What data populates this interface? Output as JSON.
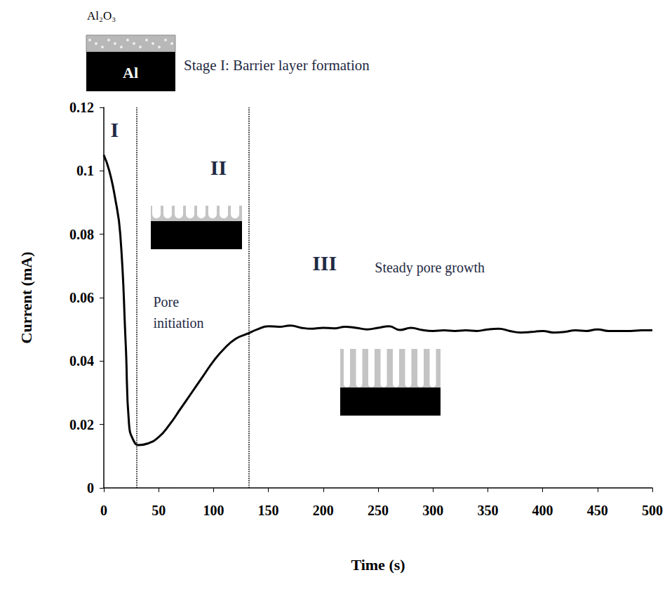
{
  "chart_data": {
    "type": "line",
    "header": "Stage I: Barrier layer formation",
    "schematic_labels": [
      "Al₂O₃",
      "Al"
    ],
    "xlabel": "Time (s)",
    "ylabel": "Current (mA)",
    "x": [
      0,
      5,
      10,
      15,
      20,
      23,
      27,
      32,
      40,
      50,
      60,
      70,
      80,
      90,
      100,
      110,
      120,
      130,
      140,
      150,
      160,
      170,
      180,
      190,
      200,
      210,
      220,
      230,
      240,
      250,
      260,
      270,
      280,
      290,
      300,
      310,
      320,
      330,
      340,
      350,
      360,
      370,
      380,
      390,
      400,
      410,
      420,
      430,
      440,
      450,
      460,
      470,
      480,
      490,
      500
    ],
    "values": [
      0.105,
      0.1,
      0.092,
      0.08,
      0.045,
      0.02,
      0.015,
      0.0135,
      0.014,
      0.016,
      0.02,
      0.025,
      0.03,
      0.035,
      0.04,
      0.044,
      0.047,
      0.0485,
      0.05,
      0.051,
      0.0508,
      0.0512,
      0.0505,
      0.0502,
      0.0505,
      0.0503,
      0.0508,
      0.0505,
      0.05,
      0.0505,
      0.051,
      0.0498,
      0.0505,
      0.0498,
      0.0495,
      0.0497,
      0.0495,
      0.0497,
      0.0495,
      0.05,
      0.0502,
      0.0495,
      0.049,
      0.0492,
      0.0495,
      0.049,
      0.0492,
      0.0497,
      0.0495,
      0.05,
      0.0495,
      0.0495,
      0.0495,
      0.0497,
      0.0497
    ],
    "color": "#000000",
    "line_style": "solid",
    "xlim": [
      0,
      500
    ],
    "xticks": [
      0,
      50,
      100,
      150,
      200,
      250,
      300,
      350,
      400,
      450,
      500
    ],
    "ylim": [
      0,
      0.12
    ],
    "yticks": [
      0,
      0.02,
      0.04,
      0.06,
      0.08,
      0.1,
      0.12
    ],
    "grid": false,
    "stage_boundaries": [
      30,
      132
    ],
    "annotations": [
      {
        "text": "I",
        "x": 6,
        "y": 0.113
      },
      {
        "text": "II",
        "x": 97,
        "y": 0.101
      },
      {
        "text": "Pore initiation",
        "x": 45,
        "y": 0.062
      },
      {
        "text": "III",
        "x": 190,
        "y": 0.071
      },
      {
        "text": "Steady pore growth",
        "x": 247,
        "y": 0.0695
      }
    ]
  }
}
